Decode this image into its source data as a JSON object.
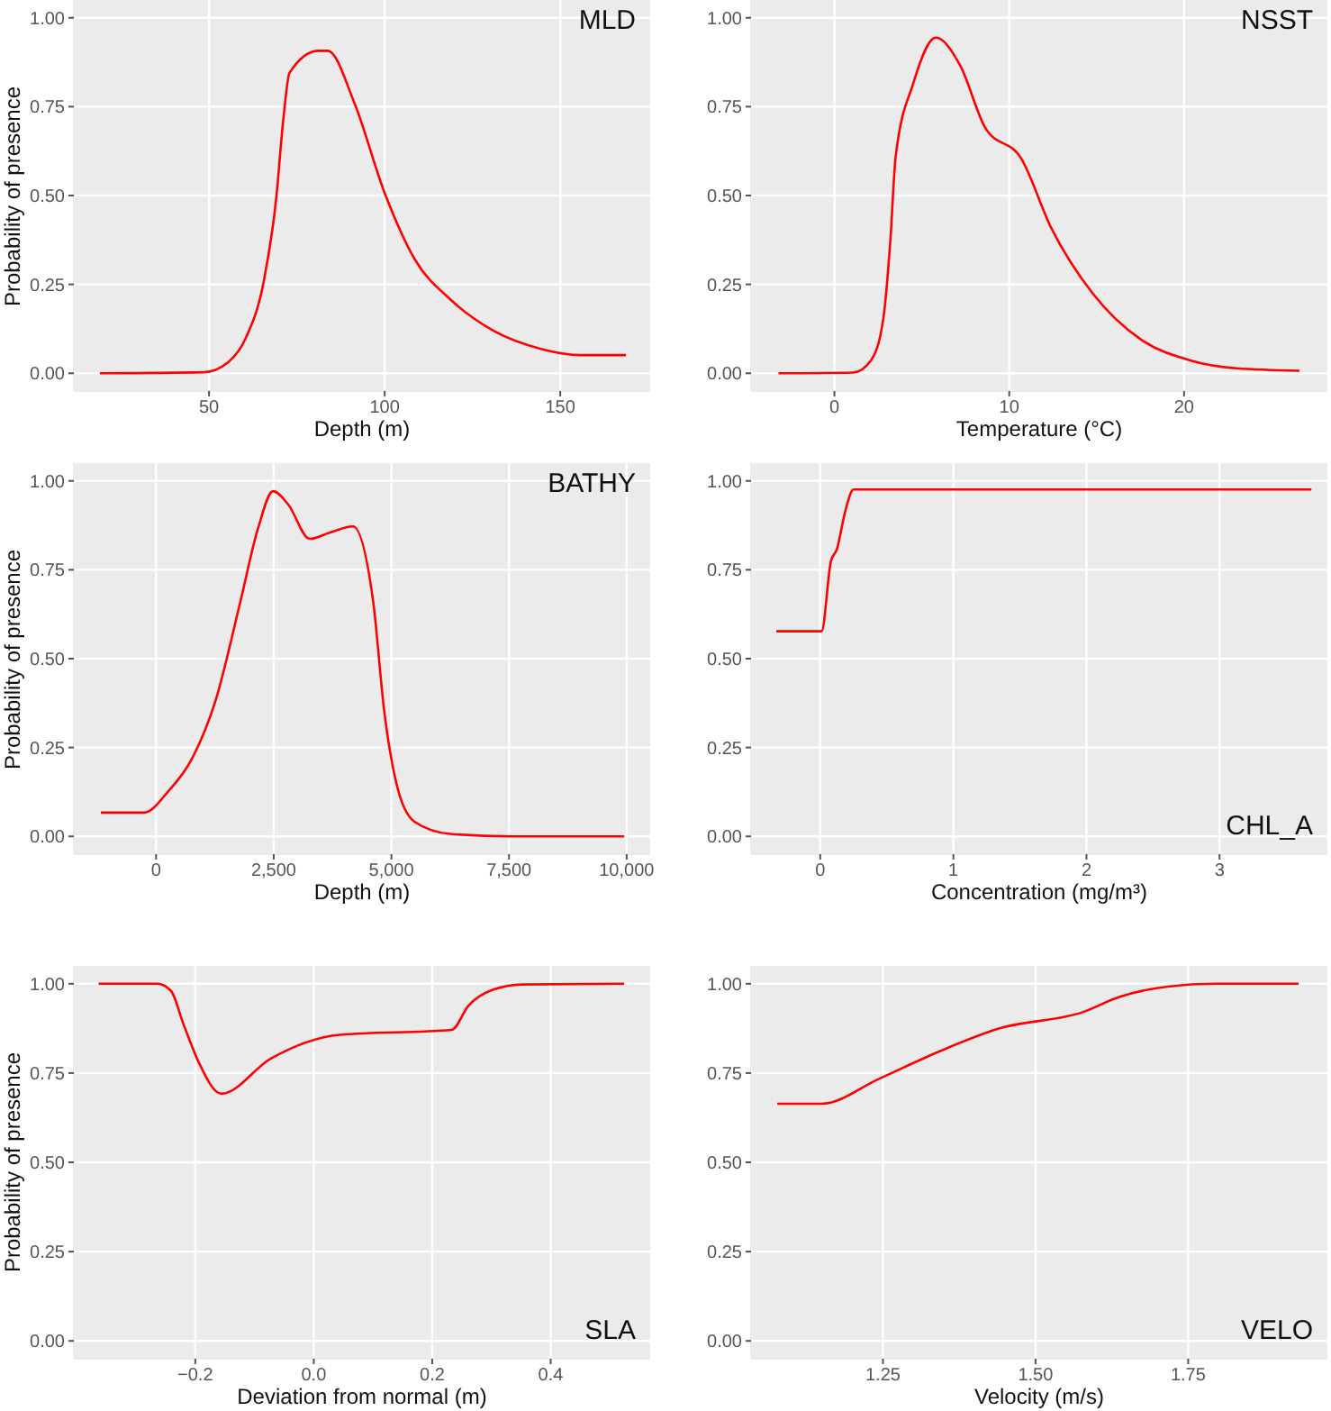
{
  "chart_data": [
    {
      "type": "line",
      "title": "MLD",
      "xlabel": "Depth (m)",
      "ylabel": "Probability of presence",
      "color": "#ff0000",
      "grid": true,
      "x": [
        18.9,
        48.5,
        55.3,
        60.5,
        65.6,
        69.1,
        71.1,
        72.9,
        81.1,
        83.8,
        91.4,
        100,
        108.6,
        118.9,
        130.9,
        144.7,
        155.8,
        168.7
      ],
      "values": [
        0,
        0.003,
        0.03,
        0.1,
        0.26,
        0.49,
        0.71,
        0.845,
        0.907,
        0.907,
        0.76,
        0.507,
        0.32,
        0.206,
        0.12,
        0.068,
        0.051,
        0.051
      ],
      "xlim": [
        11.5,
        175.6
      ],
      "ylim": [
        -0.05,
        1.05
      ],
      "xticks": [
        50,
        100,
        150
      ],
      "yticks": [
        {
          "value": 0,
          "label": "0.00"
        },
        {
          "value": 0.25,
          "label": "0.25"
        },
        {
          "value": 0.5,
          "label": "0.50"
        },
        {
          "value": 0.75,
          "label": "0.75"
        },
        {
          "value": 1,
          "label": "1.00"
        }
      ]
    },
    {
      "type": "line",
      "title": "NSST",
      "xlabel": "Temperature (°C)",
      "color": "#ff0000",
      "grid": true,
      "x": [
        -3.2,
        1.06,
        2.1,
        2.8,
        3.2,
        3.5,
        4.5,
        5.8,
        7.2,
        8.6,
        10.7,
        12.4,
        14.8,
        17.5,
        20.3,
        23.0,
        26.6
      ],
      "values": [
        0,
        0.002,
        0.037,
        0.155,
        0.375,
        0.608,
        0.814,
        0.944,
        0.865,
        0.693,
        0.603,
        0.409,
        0.223,
        0.096,
        0.037,
        0.014,
        0.007
      ],
      "xlim": [
        -4.77,
        28.2
      ],
      "ylim": [
        -0.05,
        1.05
      ],
      "xticks": [
        0,
        10,
        20
      ],
      "yticks": [
        {
          "value": 0,
          "label": "0.00"
        },
        {
          "value": 0.25,
          "label": "0.25"
        },
        {
          "value": 0.5,
          "label": "0.50"
        },
        {
          "value": 0.75,
          "label": "0.75"
        },
        {
          "value": 1,
          "label": "1.00"
        }
      ]
    },
    {
      "type": "line",
      "title": "BATHY",
      "xlabel": "Depth (m)",
      "ylabel": "Probability of presence",
      "color": "#ff0000",
      "grid": true,
      "x": [
        -1173,
        -255,
        255,
        765,
        1276,
        1786,
        2168,
        2487,
        2806,
        3265,
        3699,
        4184,
        4617,
        4847,
        5102,
        5485,
        6250,
        7526,
        9949
      ],
      "values": [
        0.067,
        0.067,
        0.126,
        0.219,
        0.387,
        0.657,
        0.867,
        0.971,
        0.934,
        0.837,
        0.855,
        0.872,
        0.657,
        0.354,
        0.152,
        0.042,
        0.007,
        0,
        0
      ],
      "xlim": [
        -1747,
        10500
      ],
      "ylim": [
        -0.05,
        1.05
      ],
      "xticks": [
        0,
        {
          "value": 2500,
          "label": "2,500"
        },
        {
          "value": 5000,
          "label": "5,000"
        },
        {
          "value": 7500,
          "label": "7,500"
        },
        {
          "value": 10000,
          "label": "10,000"
        }
      ],
      "yticks": [
        {
          "value": 0,
          "label": "0.00"
        },
        {
          "value": 0.25,
          "label": "0.25"
        },
        {
          "value": 0.5,
          "label": "0.50"
        },
        {
          "value": 0.75,
          "label": "0.75"
        },
        {
          "value": 1,
          "label": "1.00"
        }
      ]
    },
    {
      "type": "line",
      "title": "CHL_A",
      "xlabel": "Concentration (mg/m³)",
      "color": "#ff0000",
      "grid": true,
      "x": [
        -0.33,
        0.01,
        0.08,
        0.125,
        0.19,
        0.25,
        3.69
      ],
      "values": [
        0.577,
        0.577,
        0.774,
        0.808,
        0.918,
        0.976,
        0.976
      ],
      "xlim": [
        -0.52,
        3.81
      ],
      "ylim": [
        -0.05,
        1.05
      ],
      "xticks": [
        0,
        1,
        2,
        3
      ],
      "yticks": [
        {
          "value": 0,
          "label": "0.00"
        },
        {
          "value": 0.25,
          "label": "0.25"
        },
        {
          "value": 0.5,
          "label": "0.50"
        },
        {
          "value": 0.75,
          "label": "0.75"
        },
        {
          "value": 1,
          "label": "1.00"
        }
      ]
    },
    {
      "type": "line",
      "title": "SLA",
      "xlabel": "Deviation from normal (m)",
      "ylabel": "Probability of presence",
      "color": "#ff0000",
      "grid": true,
      "x": [
        -0.363,
        -0.264,
        -0.241,
        -0.22,
        -0.195,
        -0.156,
        -0.073,
        0.044,
        0.233,
        0.261,
        0.302,
        0.352,
        0.524
      ],
      "values": [
        1,
        1,
        0.98,
        0.887,
        0.783,
        0.692,
        0.79,
        0.857,
        0.871,
        0.938,
        0.983,
        0.998,
        1
      ],
      "xlim": [
        -0.405,
        0.568
      ],
      "ylim": [
        -0.05,
        1.05
      ],
      "xticks": [
        {
          "value": -0.2,
          "label": "−0.2"
        },
        {
          "value": 0,
          "label": "0.0"
        },
        {
          "value": 0.2,
          "label": "0.2"
        },
        {
          "value": 0.4,
          "label": "0.4"
        }
      ],
      "yticks": [
        {
          "value": 0,
          "label": "0.00"
        },
        {
          "value": 0.25,
          "label": "0.25"
        },
        {
          "value": 0.5,
          "label": "0.50"
        },
        {
          "value": 0.75,
          "label": "0.75"
        },
        {
          "value": 1,
          "label": "1.00"
        }
      ]
    },
    {
      "type": "line",
      "title": "VELO",
      "xlabel": "Velocity (m/s)",
      "color": "#ff0000",
      "grid": true,
      "x": [
        1.077,
        1.149,
        1.245,
        1.343,
        1.441,
        1.578,
        1.637,
        1.716,
        1.794,
        1.931
      ],
      "values": [
        0.664,
        0.664,
        0.735,
        0.811,
        0.875,
        0.921,
        0.963,
        0.992,
        1,
        1
      ],
      "xlim": [
        1.034,
        1.978
      ],
      "ylim": [
        -0.05,
        1.05
      ],
      "xticks": [
        {
          "value": 1.25,
          "label": "1.25"
        },
        {
          "value": 1.5,
          "label": "1.50"
        },
        {
          "value": 1.75,
          "label": "1.75"
        }
      ],
      "yticks": [
        {
          "value": 0,
          "label": "0.00"
        },
        {
          "value": 0.25,
          "label": "0.25"
        },
        {
          "value": 0.5,
          "label": "0.50"
        },
        {
          "value": 0.75,
          "label": "0.75"
        },
        {
          "value": 1,
          "label": "1.00"
        }
      ]
    }
  ]
}
